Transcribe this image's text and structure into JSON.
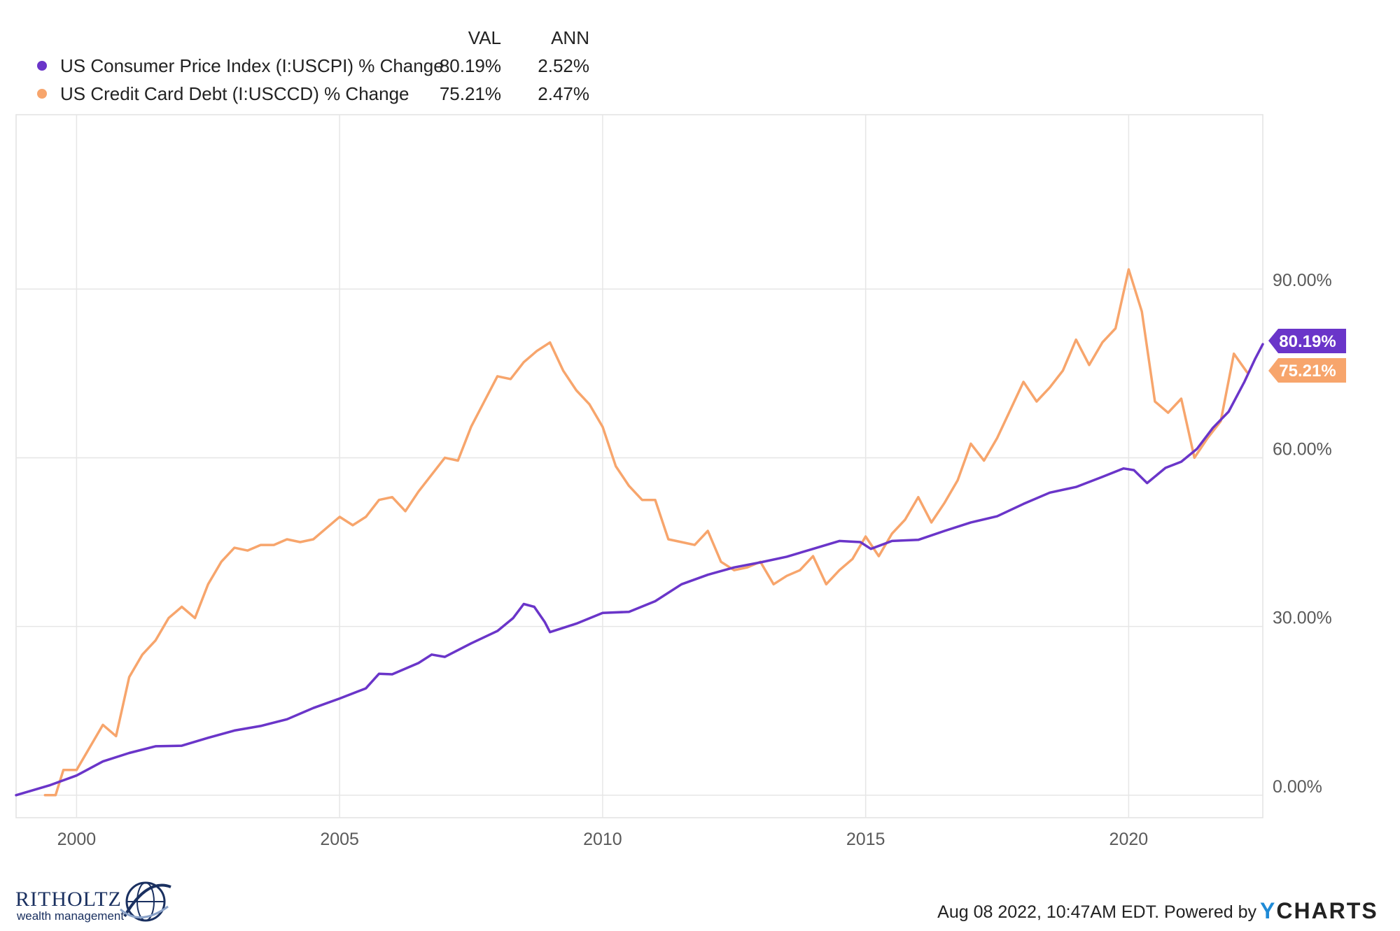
{
  "legend": {
    "col_val": "VAL",
    "col_ann": "ANN",
    "rows": [
      {
        "label": "US Consumer Price Index (I:USCPI) % Change",
        "val": "80.19%",
        "ann": "2.52%",
        "color": "#6a35c9"
      },
      {
        "label": "US Credit Card Debt (I:USCCD) % Change",
        "val": "75.21%",
        "ann": "2.47%",
        "color": "#f7a56c"
      }
    ]
  },
  "badges": {
    "cpi": "80.19%",
    "ccd": "75.21%"
  },
  "footer": {
    "timestamp": "Aug 08 2022, 10:47AM EDT. Powered by",
    "brand_y": "Y",
    "brand_rest": "CHARTS"
  },
  "logo": {
    "main": "RITHOLTZ",
    "sub": "wealth management"
  },
  "chart_data": {
    "type": "line",
    "x_unit": "year",
    "xlim": [
      1998.85,
      2022.55
    ],
    "ylim": [
      -4,
      121
    ],
    "x_ticks": [
      2000,
      2005,
      2010,
      2015,
      2020
    ],
    "x_tick_labels": [
      "2000",
      "2005",
      "2010",
      "2015",
      "2020"
    ],
    "y_ticks": [
      0,
      30,
      60,
      90
    ],
    "y_tick_labels": [
      "0.00%",
      "30.00%",
      "60.00%",
      "90.00%"
    ],
    "grid": true,
    "legend_position": "top-left",
    "series": [
      {
        "name": "US Consumer Price Index (I:USCPI) % Change",
        "color": "#6a35c9",
        "points": [
          [
            1998.85,
            0
          ],
          [
            1999.5,
            1.8
          ],
          [
            2000.0,
            3.5
          ],
          [
            2000.5,
            6.0
          ],
          [
            2001.0,
            7.5
          ],
          [
            2001.5,
            8.7
          ],
          [
            2002.0,
            8.8
          ],
          [
            2002.5,
            10.2
          ],
          [
            2003.0,
            11.5
          ],
          [
            2003.5,
            12.3
          ],
          [
            2004.0,
            13.5
          ],
          [
            2004.5,
            15.5
          ],
          [
            2005.0,
            17.2
          ],
          [
            2005.5,
            19.0
          ],
          [
            2005.75,
            21.6
          ],
          [
            2006.0,
            21.5
          ],
          [
            2006.5,
            23.5
          ],
          [
            2006.75,
            25.0
          ],
          [
            2007.0,
            24.6
          ],
          [
            2007.5,
            27.0
          ],
          [
            2008.0,
            29.2
          ],
          [
            2008.3,
            31.5
          ],
          [
            2008.5,
            34.0
          ],
          [
            2008.7,
            33.5
          ],
          [
            2008.9,
            30.8
          ],
          [
            2009.0,
            29.0
          ],
          [
            2009.5,
            30.5
          ],
          [
            2010.0,
            32.4
          ],
          [
            2010.5,
            32.6
          ],
          [
            2011.0,
            34.5
          ],
          [
            2011.5,
            37.5
          ],
          [
            2012.0,
            39.2
          ],
          [
            2012.5,
            40.5
          ],
          [
            2013.0,
            41.4
          ],
          [
            2013.5,
            42.4
          ],
          [
            2014.0,
            43.8
          ],
          [
            2014.5,
            45.2
          ],
          [
            2014.9,
            45.0
          ],
          [
            2015.1,
            43.8
          ],
          [
            2015.5,
            45.2
          ],
          [
            2016.0,
            45.4
          ],
          [
            2016.5,
            47.0
          ],
          [
            2017.0,
            48.5
          ],
          [
            2017.5,
            49.6
          ],
          [
            2018.0,
            51.8
          ],
          [
            2018.5,
            53.8
          ],
          [
            2019.0,
            54.8
          ],
          [
            2019.5,
            56.6
          ],
          [
            2019.9,
            58.1
          ],
          [
            2020.1,
            57.8
          ],
          [
            2020.35,
            55.5
          ],
          [
            2020.7,
            58.2
          ],
          [
            2021.0,
            59.3
          ],
          [
            2021.3,
            61.6
          ],
          [
            2021.6,
            65.3
          ],
          [
            2021.9,
            68.2
          ],
          [
            2022.2,
            73.5
          ],
          [
            2022.4,
            77.5
          ],
          [
            2022.55,
            80.19
          ]
        ]
      },
      {
        "name": "US Credit Card Debt (I:USCCD) % Change",
        "color": "#f7a56c",
        "points": [
          [
            1999.4,
            0
          ],
          [
            1999.6,
            0
          ],
          [
            1999.75,
            4.5
          ],
          [
            2000.0,
            4.5
          ],
          [
            2000.5,
            12.5
          ],
          [
            2000.75,
            10.5
          ],
          [
            2001.0,
            21.0
          ],
          [
            2001.25,
            25.0
          ],
          [
            2001.5,
            27.5
          ],
          [
            2001.75,
            31.5
          ],
          [
            2002.0,
            33.5
          ],
          [
            2002.25,
            31.5
          ],
          [
            2002.5,
            37.5
          ],
          [
            2002.75,
            41.5
          ],
          [
            2003.0,
            44.0
          ],
          [
            2003.25,
            43.5
          ],
          [
            2003.5,
            44.5
          ],
          [
            2003.75,
            44.5
          ],
          [
            2004.0,
            45.5
          ],
          [
            2004.25,
            45.0
          ],
          [
            2004.5,
            45.5
          ],
          [
            2004.75,
            47.5
          ],
          [
            2005.0,
            49.5
          ],
          [
            2005.25,
            48.0
          ],
          [
            2005.5,
            49.5
          ],
          [
            2005.75,
            52.5
          ],
          [
            2006.0,
            53.0
          ],
          [
            2006.25,
            50.5
          ],
          [
            2006.5,
            54.0
          ],
          [
            2006.75,
            57.0
          ],
          [
            2007.0,
            60.0
          ],
          [
            2007.25,
            59.5
          ],
          [
            2007.5,
            65.5
          ],
          [
            2007.75,
            70.0
          ],
          [
            2008.0,
            74.5
          ],
          [
            2008.25,
            74.0
          ],
          [
            2008.5,
            77.0
          ],
          [
            2008.75,
            79.0
          ],
          [
            2009.0,
            80.5
          ],
          [
            2009.25,
            75.5
          ],
          [
            2009.5,
            72.0
          ],
          [
            2009.75,
            69.5
          ],
          [
            2010.0,
            65.5
          ],
          [
            2010.25,
            58.5
          ],
          [
            2010.5,
            55.0
          ],
          [
            2010.75,
            52.5
          ],
          [
            2011.0,
            52.5
          ],
          [
            2011.25,
            45.5
          ],
          [
            2011.5,
            45.0
          ],
          [
            2011.75,
            44.5
          ],
          [
            2012.0,
            47.0
          ],
          [
            2012.25,
            41.5
          ],
          [
            2012.5,
            40.0
          ],
          [
            2012.75,
            40.5
          ],
          [
            2013.0,
            41.5
          ],
          [
            2013.25,
            37.5
          ],
          [
            2013.5,
            39.0
          ],
          [
            2013.75,
            40.0
          ],
          [
            2014.0,
            42.5
          ],
          [
            2014.25,
            37.5
          ],
          [
            2014.5,
            40.0
          ],
          [
            2014.75,
            42.0
          ],
          [
            2015.0,
            46.0
          ],
          [
            2015.25,
            42.5
          ],
          [
            2015.5,
            46.5
          ],
          [
            2015.75,
            49.0
          ],
          [
            2016.0,
            53.0
          ],
          [
            2016.25,
            48.5
          ],
          [
            2016.5,
            52.0
          ],
          [
            2016.75,
            56.0
          ],
          [
            2017.0,
            62.5
          ],
          [
            2017.25,
            59.5
          ],
          [
            2017.5,
            63.5
          ],
          [
            2017.75,
            68.5
          ],
          [
            2018.0,
            73.5
          ],
          [
            2018.25,
            70.0
          ],
          [
            2018.5,
            72.5
          ],
          [
            2018.75,
            75.5
          ],
          [
            2019.0,
            81.0
          ],
          [
            2019.25,
            76.5
          ],
          [
            2019.5,
            80.5
          ],
          [
            2019.75,
            83.0
          ],
          [
            2020.0,
            93.5
          ],
          [
            2020.25,
            86.0
          ],
          [
            2020.5,
            70.0
          ],
          [
            2020.75,
            68.0
          ],
          [
            2021.0,
            70.5
          ],
          [
            2021.25,
            60.0
          ],
          [
            2021.5,
            63.5
          ],
          [
            2021.75,
            66.5
          ],
          [
            2022.0,
            78.5
          ],
          [
            2022.25,
            75.21
          ]
        ]
      }
    ]
  }
}
